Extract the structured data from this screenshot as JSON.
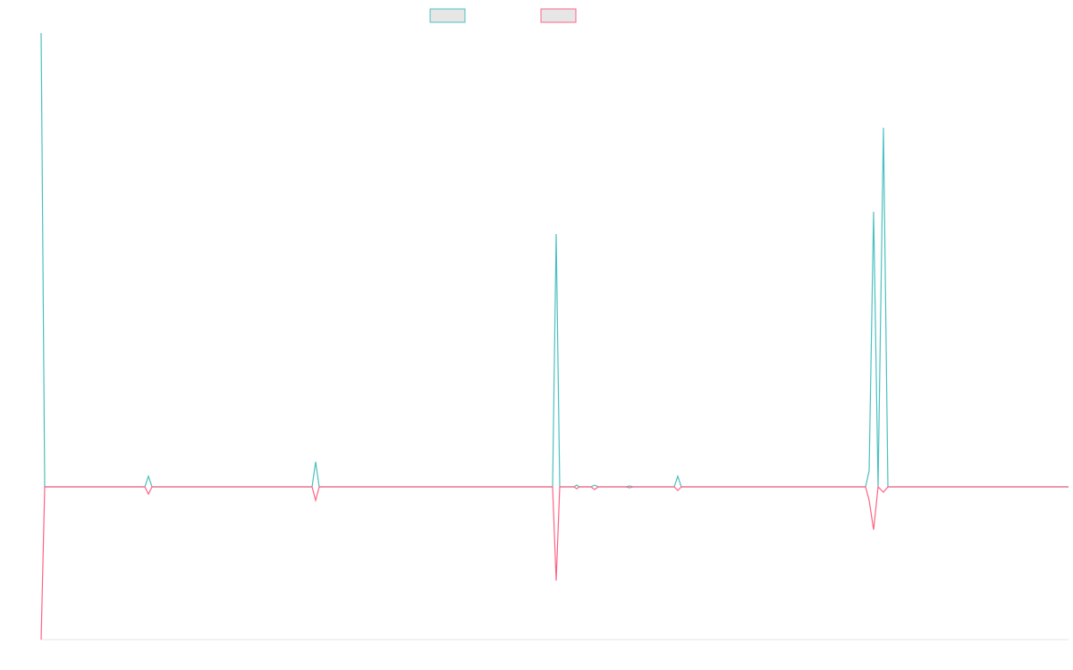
{
  "chart_data": {
    "type": "line",
    "x": [
      0,
      4,
      116,
      120,
      124,
      303,
      307,
      311,
      572,
      576,
      580,
      596,
      599,
      602,
      615,
      619,
      623,
      654,
      658,
      662,
      708,
      712,
      716,
      922,
      926,
      931,
      936,
      942,
      947,
      1149
    ],
    "series": [
      {
        "color": "#4bc0c0",
        "values": [
          508,
          0,
          0,
          12,
          0,
          0,
          28,
          0,
          0,
          283,
          0,
          0,
          2,
          0,
          0,
          2,
          0,
          0,
          1,
          0,
          0,
          12,
          0,
          0,
          18,
          308,
          0,
          402,
          0,
          0
        ]
      },
      {
        "color": "#ff6384",
        "values": [
          -171,
          0,
          0,
          -8,
          0,
          0,
          -15,
          0,
          0,
          -105,
          0,
          0,
          -2,
          0,
          0,
          -3,
          0,
          0,
          -1,
          0,
          0,
          -4,
          0,
          0,
          -15,
          -48,
          0,
          -6,
          0,
          0
        ]
      }
    ],
    "xlim": [
      0,
      1149
    ],
    "ylim": [
      -171,
      508
    ]
  }
}
